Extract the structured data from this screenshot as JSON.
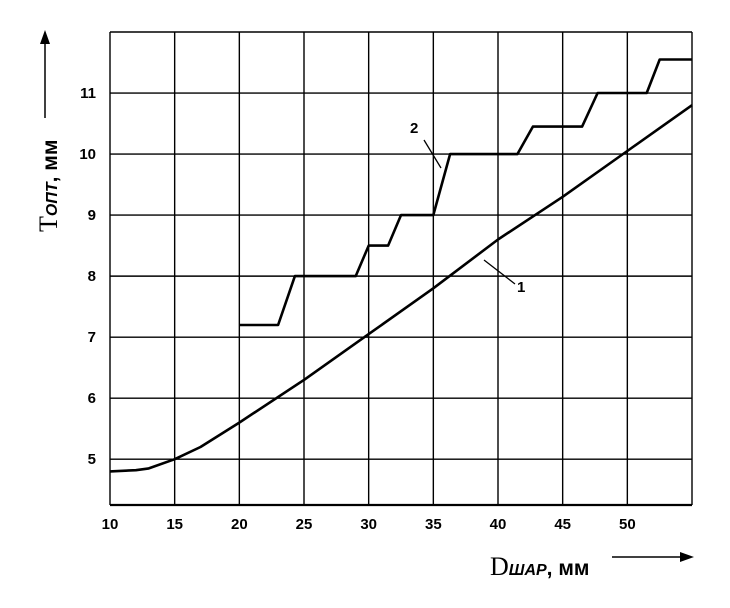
{
  "chart_data": {
    "type": "line",
    "xlabel": {
      "main": "D",
      "sub": "ШАР",
      "unit": ", мм"
    },
    "ylabel": {
      "main": "T",
      "sub": "ОПТ",
      "unit": ", мм"
    },
    "xlim": [
      10,
      55
    ],
    "ylim": [
      4.25,
      12
    ],
    "x_ticks": [
      "10",
      "15",
      "20",
      "25",
      "30",
      "35",
      "40",
      "45",
      "50"
    ],
    "y_ticks": [
      "5",
      "6",
      "7",
      "8",
      "9",
      "10",
      "11"
    ],
    "grid": true,
    "series": [
      {
        "name": "1",
        "x": [
          10,
          12,
          13,
          15,
          17,
          20,
          25,
          30,
          35,
          40,
          45,
          50,
          55
        ],
        "y": [
          4.8,
          4.82,
          4.85,
          5.0,
          5.2,
          5.6,
          6.3,
          7.05,
          7.8,
          8.6,
          9.3,
          10.05,
          10.8
        ]
      },
      {
        "name": "2",
        "x": [
          20,
          23,
          24.3,
          29,
          30,
          31.5,
          32.5,
          35,
          36.3,
          41.5,
          42.7,
          46.5,
          47.7,
          51.5,
          52.5,
          55
        ],
        "y": [
          7.2,
          7.2,
          8.0,
          8.0,
          8.5,
          8.5,
          9.0,
          9.0,
          10.0,
          10.0,
          10.45,
          10.45,
          11.0,
          11.0,
          11.55,
          11.55
        ]
      }
    ],
    "labels": [
      {
        "series": "2",
        "text": "2"
      },
      {
        "series": "1",
        "text": "1"
      }
    ]
  }
}
